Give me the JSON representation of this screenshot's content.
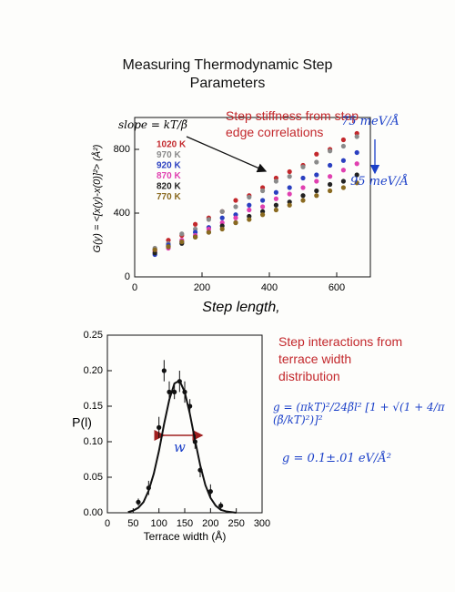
{
  "chart_data": [
    {
      "type": "scatter",
      "title": "Measuring Thermodynamic Step Parameters",
      "x_label": "Step length,",
      "y_label": "G(y) = <[x(y)-x(0)]²> (Å²)",
      "xlim": [
        0,
        700
      ],
      "ylim": [
        0,
        1000
      ],
      "xticks": [
        0,
        200,
        400,
        600
      ],
      "yticks": [
        0,
        400,
        800
      ],
      "x": [
        60,
        100,
        140,
        180,
        220,
        260,
        300,
        340,
        380,
        420,
        460,
        500,
        540,
        580,
        620,
        660
      ],
      "series": [
        {
          "name": "1020 K",
          "color": "#c3282c",
          "values": [
            170,
            230,
            260,
            330,
            370,
            410,
            480,
            510,
            560,
            620,
            660,
            700,
            770,
            800,
            860,
            900
          ]
        },
        {
          "name": "970 K",
          "color": "#8a8a8a",
          "values": [
            180,
            210,
            270,
            300,
            360,
            410,
            440,
            500,
            540,
            600,
            630,
            690,
            720,
            790,
            820,
            880
          ]
        },
        {
          "name": "920 K",
          "color": "#2a3fc0",
          "values": [
            140,
            200,
            220,
            280,
            310,
            370,
            390,
            450,
            480,
            530,
            560,
            620,
            640,
            700,
            730,
            780
          ]
        },
        {
          "name": "870 K",
          "color": "#e040b0",
          "values": [
            160,
            180,
            230,
            260,
            300,
            340,
            370,
            420,
            440,
            490,
            520,
            560,
            600,
            630,
            670,
            710
          ]
        },
        {
          "name": "820 K",
          "color": "#222222",
          "values": [
            150,
            190,
            210,
            250,
            280,
            320,
            340,
            380,
            410,
            450,
            470,
            510,
            540,
            580,
            600,
            640
          ]
        },
        {
          "name": "770 K",
          "color": "#8a6a20",
          "values": [
            170,
            190,
            220,
            250,
            280,
            300,
            340,
            360,
            390,
            420,
            450,
            480,
            510,
            540,
            560,
            590
          ]
        }
      ],
      "annotations": [
        "slope = kT/β̃",
        "Step stiffness from step edge correlations",
        "75 meV/Å",
        "95 meV/Å"
      ]
    },
    {
      "type": "scatter",
      "x_label": "Terrace width (Å)",
      "y_label": "P(l)",
      "xlim": [
        0,
        300
      ],
      "ylim": [
        0,
        0.25
      ],
      "xticks": [
        0,
        50,
        100,
        150,
        200,
        250,
        300
      ],
      "yticks": [
        {
          "value": 0,
          "label": "0.00"
        },
        {
          "value": 0.05,
          "label": "0.05"
        },
        {
          "value": 0.1,
          "label": "0.10"
        },
        {
          "value": 0.15,
          "label": "0.15"
        },
        {
          "value": 0.2,
          "label": "0.20"
        },
        {
          "value": 0.25,
          "label": "0.25"
        }
      ],
      "x": [
        60,
        80,
        100,
        110,
        120,
        130,
        140,
        150,
        160,
        170,
        180,
        200,
        220
      ],
      "values": [
        0.015,
        0.035,
        0.12,
        0.2,
        0.17,
        0.17,
        0.185,
        0.17,
        0.15,
        0.1,
        0.06,
        0.03,
        0.01
      ],
      "errors": [
        0.005,
        0.01,
        0.015,
        0.015,
        0.015,
        0.01,
        0.015,
        0.015,
        0.01,
        0.01,
        0.01,
        0.01,
        0.005
      ],
      "fit": {
        "x": [
          40,
          50,
          60,
          70,
          80,
          90,
          100,
          110,
          120,
          130,
          140,
          150,
          160,
          170,
          180,
          190,
          200,
          210,
          220,
          230,
          240,
          250
        ],
        "values": [
          0.001,
          0.003,
          0.007,
          0.015,
          0.031,
          0.055,
          0.087,
          0.125,
          0.159,
          0.182,
          0.186,
          0.17,
          0.139,
          0.102,
          0.067,
          0.039,
          0.021,
          0.01,
          0.004,
          0.002,
          0.001,
          0
        ]
      },
      "annotations": [
        "Step interactions from terrace width distribution",
        "w",
        "g = (πkT)²/24β̃l² [1 + √(1 + 4/π (β̃/kT)²)]²",
        "g = 0.1±.01 eV/Å²"
      ]
    }
  ]
}
